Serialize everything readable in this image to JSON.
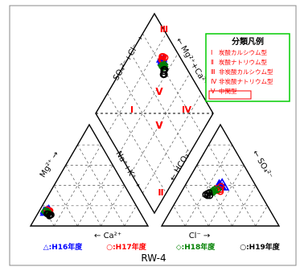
{
  "chart_data": {
    "type": "scatter",
    "subtype": "piper-diagram",
    "title": "RW-4",
    "grid": "dashed",
    "legend_placement": "top-right (classification) and bottom (series)",
    "axis_labels": {
      "cation_bottom": "← Ca²⁺",
      "cation_left": "Mg²⁺ →",
      "anion_bottom": "Cl⁻ →",
      "anion_right": "← SO₄²⁻",
      "center_left": "Na⁺+K⁺ →",
      "center_right": "← HCO₃⁻",
      "diamond_top_left": "SO₄²⁻+Cl⁻ →",
      "diamond_top_right": "← Mg²⁺+Ca²⁺"
    },
    "classification_legend": {
      "title": "分類凡例",
      "items": [
        {
          "code": "Ⅰ",
          "label": "炭酸カルシウム型"
        },
        {
          "code": "Ⅱ",
          "label": "炭酸ナトリウム型"
        },
        {
          "code": "Ⅲ",
          "label": "非炭酸カルシウム型"
        },
        {
          "code": "Ⅳ",
          "label": "非炭酸ナトリウム型"
        },
        {
          "code": "Ⅴ",
          "label": "中間型"
        }
      ]
    },
    "region_labels": {
      "top": "Ⅲ",
      "left": "Ⅰ",
      "right": "Ⅳ",
      "bottom": "Ⅱ",
      "center_a": "Ⅴ",
      "center_b": "Ⅴ"
    },
    "series": [
      {
        "name": "△:H16年度",
        "marker": "triangle",
        "color": "#0000ff",
        "cation": [
          [
            80,
            15
          ],
          [
            78,
            16
          ],
          [
            76,
            17
          ],
          [
            80,
            14
          ],
          [
            82,
            13
          ],
          [
            81,
            15
          ]
        ],
        "anion": [
          [
            30,
            40
          ],
          [
            28,
            42
          ],
          [
            32,
            39
          ],
          [
            35,
            38
          ],
          [
            30,
            43
          ],
          [
            29,
            41
          ]
        ],
        "diamond": [
          [
            70,
            82
          ],
          [
            71,
            83
          ],
          [
            69,
            84
          ],
          [
            72,
            82
          ],
          [
            70,
            85
          ],
          [
            68,
            83
          ]
        ]
      },
      {
        "name": "○:H17年度",
        "marker": "circle",
        "color": "#ff0000",
        "cation": [
          [
            78,
            13
          ],
          [
            77,
            14
          ],
          [
            76,
            15
          ],
          [
            78,
            16
          ],
          [
            79,
            13
          ]
        ],
        "anion": [
          [
            30,
            35
          ],
          [
            32,
            36
          ],
          [
            28,
            37
          ],
          [
            33,
            34
          ],
          [
            31,
            39
          ]
        ],
        "diamond": [
          [
            71,
            86
          ],
          [
            70,
            84
          ],
          [
            69,
            87
          ],
          [
            72,
            85
          ],
          [
            71,
            83
          ]
        ]
      },
      {
        "name": "◇:H18年度",
        "marker": "diamond",
        "color": "#008000",
        "cation": [
          [
            80,
            12
          ],
          [
            79,
            13
          ],
          [
            81,
            14
          ],
          [
            78,
            14
          ],
          [
            80,
            15
          ]
        ],
        "anion": [
          [
            27,
            33
          ],
          [
            26,
            35
          ],
          [
            28,
            34
          ],
          [
            30,
            36
          ],
          [
            27,
            36
          ]
        ],
        "diamond": [
          [
            66,
            80
          ],
          [
            67,
            81
          ],
          [
            65,
            82
          ],
          [
            68,
            80
          ],
          [
            66,
            83
          ]
        ]
      },
      {
        "name": "○:H19年度",
        "marker": "circle-open",
        "color": "#000000",
        "cation": [
          [
            79,
            10
          ],
          [
            78,
            11
          ],
          [
            80,
            12
          ],
          [
            77,
            11
          ],
          [
            79,
            12
          ]
        ],
        "anion": [
          [
            24,
            30
          ],
          [
            23,
            32
          ],
          [
            26,
            30
          ],
          [
            24,
            33
          ],
          [
            22,
            31
          ]
        ],
        "diamond": [
          [
            63,
            79
          ],
          [
            62,
            77
          ],
          [
            64,
            80
          ],
          [
            63,
            81
          ],
          [
            61,
            78
          ]
        ]
      }
    ]
  }
}
